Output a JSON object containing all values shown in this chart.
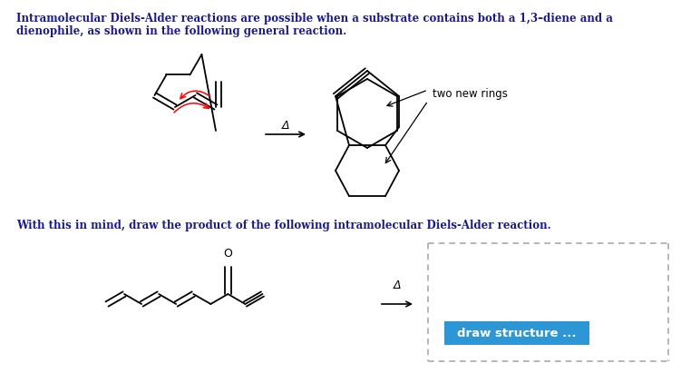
{
  "bg_color": "#ffffff",
  "title_text1": "Intramolecular Diels-Alder reactions are possible when a substrate contains both a 1,3–diene and a",
  "title_text2": "dienophile, as shown in the following general reaction.",
  "subtitle_text": "With this in mind, draw the product of the following intramolecular Diels-Alder reaction.",
  "two_new_rings_label": "two new rings",
  "draw_structure_label": "draw structure ...",
  "arrow_label": "Δ",
  "text_color": "#1a1a8c",
  "draw_btn_color": "#2d96d4",
  "draw_btn_text_color": "#ffffff",
  "font_size_body": 8.5,
  "font_size_btn": 9.5
}
